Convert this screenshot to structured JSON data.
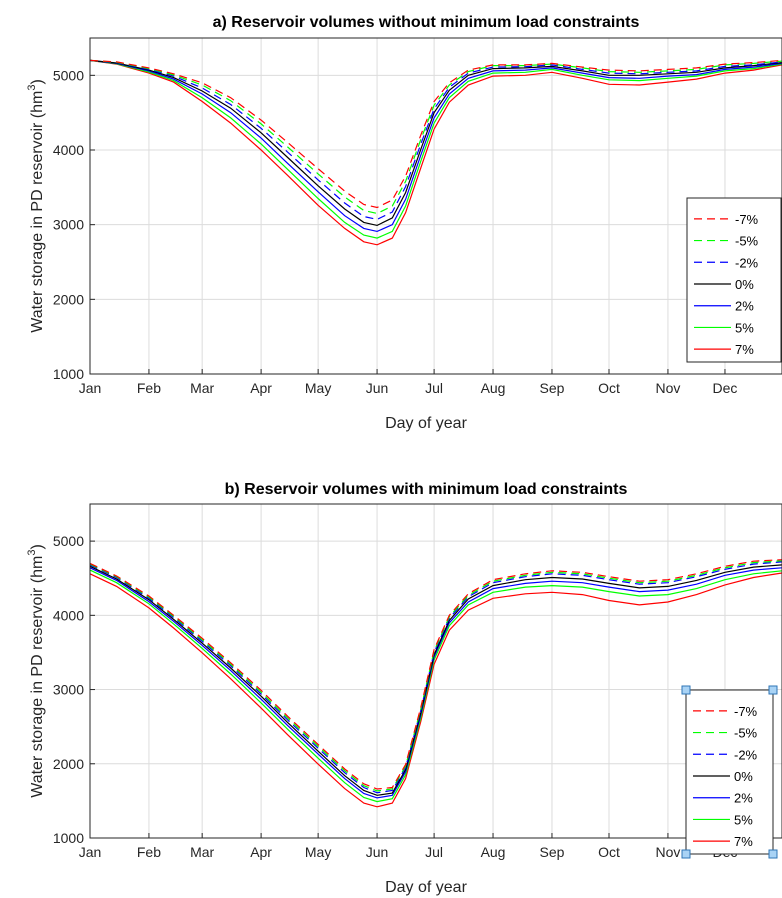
{
  "chart_data": [
    {
      "type": "line",
      "title": "a) Reservoir volumes without minimum load constraints",
      "xlabel": "Day of year",
      "ylabel": "Water storage in PD reservoir (hm",
      "ylabel_sup": "3",
      "ylabel_tail": ")",
      "xlim": [
        1,
        365
      ],
      "ylim": [
        1000,
        5500
      ],
      "yticks": [
        1000,
        2000,
        3000,
        4000,
        5000
      ],
      "month_ticks": [
        1,
        32,
        60,
        91,
        121,
        152,
        182,
        213,
        244,
        274,
        305,
        335
      ],
      "month_labels": [
        "Jan",
        "Feb",
        "Mar",
        "Apr",
        "May",
        "Jun",
        "Jul",
        "Aug",
        "Sep",
        "Oct",
        "Nov",
        "Dec"
      ],
      "grid": true,
      "legend_position": "right",
      "legend_selected": false,
      "x": [
        1,
        15,
        32,
        45,
        60,
        75,
        91,
        105,
        121,
        135,
        145,
        152,
        160,
        167,
        175,
        182,
        190,
        200,
        213,
        230,
        244,
        260,
        274,
        290,
        305,
        320,
        335,
        350,
        365
      ],
      "series": [
        {
          "name": "-7%",
          "color": "#ff0000",
          "dash": "dashed",
          "values": [
            5200,
            5180,
            5100,
            5020,
            4900,
            4700,
            4400,
            4100,
            3750,
            3450,
            3270,
            3230,
            3330,
            3650,
            4200,
            4650,
            4900,
            5070,
            5140,
            5140,
            5160,
            5110,
            5070,
            5060,
            5080,
            5100,
            5150,
            5170,
            5200
          ]
        },
        {
          "name": "-5%",
          "color": "#00ff00",
          "dash": "dashed",
          "values": [
            5200,
            5175,
            5090,
            5005,
            4870,
            4660,
            4350,
            4040,
            3680,
            3370,
            3190,
            3150,
            3250,
            3580,
            4140,
            4600,
            4870,
            5050,
            5130,
            5130,
            5150,
            5100,
            5050,
            5040,
            5060,
            5080,
            5140,
            5160,
            5190
          ]
        },
        {
          "name": "-2%",
          "color": "#0000ff",
          "dash": "dashed",
          "values": [
            5200,
            5170,
            5080,
            4990,
            4830,
            4610,
            4290,
            3970,
            3600,
            3290,
            3110,
            3070,
            3170,
            3510,
            4080,
            4550,
            4840,
            5030,
            5110,
            5115,
            5140,
            5080,
            5030,
            5020,
            5040,
            5060,
            5120,
            5140,
            5180
          ]
        },
        {
          "name": "0%",
          "color": "#000000",
          "dash": "solid",
          "values": [
            5200,
            5165,
            5070,
            4970,
            4790,
            4560,
            4230,
            3900,
            3520,
            3210,
            3030,
            2990,
            3090,
            3430,
            4010,
            4500,
            4800,
            5000,
            5090,
            5100,
            5120,
            5060,
            5000,
            5000,
            5020,
            5040,
            5100,
            5130,
            5170
          ]
        },
        {
          "name": "2%",
          "color": "#0000ff",
          "dash": "solid",
          "values": [
            5200,
            5160,
            5060,
            4950,
            4750,
            4500,
            4160,
            3820,
            3440,
            3120,
            2950,
            2910,
            3000,
            3340,
            3930,
            4430,
            4750,
            4960,
            5060,
            5070,
            5100,
            5030,
            4970,
            4960,
            4990,
            5010,
            5080,
            5110,
            5160
          ]
        },
        {
          "name": "5%",
          "color": "#00ff00",
          "dash": "solid",
          "values": [
            5200,
            5155,
            5045,
            4930,
            4700,
            4430,
            4080,
            3740,
            3350,
            3030,
            2860,
            2820,
            2910,
            3250,
            3850,
            4360,
            4700,
            4920,
            5030,
            5040,
            5080,
            5000,
            4940,
            4930,
            4960,
            4990,
            5060,
            5090,
            5150
          ]
        },
        {
          "name": "7%",
          "color": "#ff0000",
          "dash": "solid",
          "values": [
            5200,
            5150,
            5030,
            4910,
            4650,
            4360,
            4000,
            3660,
            3260,
            2950,
            2770,
            2730,
            2820,
            3160,
            3760,
            4280,
            4640,
            4870,
            4990,
            5000,
            5040,
            4960,
            4880,
            4870,
            4910,
            4950,
            5030,
            5070,
            5140
          ]
        }
      ]
    },
    {
      "type": "line",
      "title": "b) Reservoir volumes with minimum load constraints",
      "xlabel": "Day of year",
      "ylabel": "Water storage in PD reservoir (hm",
      "ylabel_sup": "3",
      "ylabel_tail": ")",
      "xlim": [
        1,
        365
      ],
      "ylim": [
        1000,
        5500
      ],
      "yticks": [
        1000,
        2000,
        3000,
        4000,
        5000
      ],
      "month_ticks": [
        1,
        32,
        60,
        91,
        121,
        152,
        182,
        213,
        244,
        274,
        305,
        335
      ],
      "month_labels": [
        "Jan",
        "Feb",
        "Mar",
        "Apr",
        "May",
        "Jun",
        "Jul",
        "Aug",
        "Sep",
        "Oct",
        "Nov",
        "Dec"
      ],
      "grid": true,
      "legend_position": "bottom-right",
      "legend_selected": true,
      "x": [
        1,
        15,
        32,
        45,
        60,
        75,
        91,
        105,
        121,
        135,
        145,
        152,
        160,
        167,
        175,
        182,
        190,
        200,
        213,
        230,
        244,
        260,
        274,
        290,
        305,
        320,
        335,
        350,
        365
      ],
      "series": [
        {
          "name": "-7%",
          "color": "#ff0000",
          "dash": "dashed",
          "values": [
            4700,
            4530,
            4260,
            4000,
            3690,
            3360,
            2990,
            2640,
            2260,
            1930,
            1730,
            1660,
            1680,
            1990,
            2760,
            3540,
            4000,
            4290,
            4480,
            4560,
            4600,
            4580,
            4520,
            4460,
            4480,
            4560,
            4660,
            4730,
            4750
          ]
        },
        {
          "name": "-5%",
          "color": "#00ff00",
          "dash": "dashed",
          "values": [
            4690,
            4520,
            4245,
            3985,
            3670,
            3340,
            2965,
            2615,
            2235,
            1905,
            1705,
            1635,
            1660,
            1970,
            2740,
            3520,
            3980,
            4270,
            4460,
            4540,
            4580,
            4560,
            4500,
            4440,
            4460,
            4540,
            4640,
            4710,
            4735
          ]
        },
        {
          "name": "-2%",
          "color": "#0000ff",
          "dash": "dashed",
          "values": [
            4680,
            4510,
            4230,
            3970,
            3650,
            3320,
            2940,
            2590,
            2210,
            1880,
            1680,
            1610,
            1640,
            1950,
            2720,
            3500,
            3960,
            4250,
            4440,
            4520,
            4560,
            4540,
            4480,
            4420,
            4440,
            4520,
            4620,
            4690,
            4720
          ]
        },
        {
          "name": "0%",
          "color": "#000000",
          "dash": "solid",
          "values": [
            4660,
            4490,
            4210,
            3945,
            3625,
            3290,
            2910,
            2555,
            2170,
            1840,
            1640,
            1575,
            1605,
            1920,
            2690,
            3470,
            3930,
            4220,
            4400,
            4480,
            4510,
            4490,
            4430,
            4370,
            4390,
            4470,
            4580,
            4650,
            4680
          ]
        },
        {
          "name": "2%",
          "color": "#0000ff",
          "dash": "solid",
          "values": [
            4640,
            4470,
            4185,
            3920,
            3595,
            3255,
            2870,
            2515,
            2130,
            1800,
            1600,
            1540,
            1575,
            1890,
            2660,
            3440,
            3900,
            4180,
            4360,
            4430,
            4460,
            4440,
            4380,
            4320,
            4340,
            4420,
            4540,
            4610,
            4640
          ]
        },
        {
          "name": "5%",
          "color": "#00ff00",
          "dash": "solid",
          "values": [
            4610,
            4440,
            4155,
            3885,
            3555,
            3210,
            2820,
            2465,
            2075,
            1745,
            1545,
            1490,
            1530,
            1850,
            2620,
            3400,
            3860,
            4140,
            4310,
            4380,
            4400,
            4380,
            4320,
            4260,
            4280,
            4360,
            4480,
            4560,
            4600
          ]
        },
        {
          "name": "7%",
          "color": "#ff0000",
          "dash": "solid",
          "values": [
            4560,
            4390,
            4100,
            3830,
            3495,
            3145,
            2750,
            2390,
            1995,
            1665,
            1470,
            1420,
            1470,
            1800,
            2570,
            3340,
            3800,
            4070,
            4230,
            4290,
            4310,
            4280,
            4200,
            4140,
            4180,
            4280,
            4410,
            4510,
            4570
          ]
        }
      ]
    }
  ]
}
